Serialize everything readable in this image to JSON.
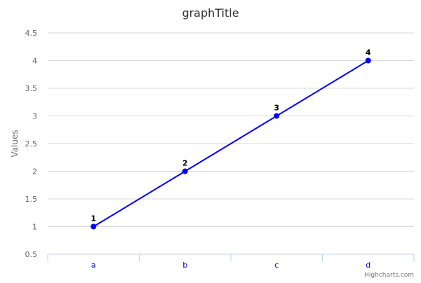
{
  "chart_data": {
    "type": "line",
    "title": "graphTitle",
    "xlabel": "",
    "ylabel": "Values",
    "categories": [
      "a",
      "b",
      "c",
      "d"
    ],
    "series": [
      {
        "values": [
          1,
          2,
          3,
          4
        ],
        "color": "#0000ff",
        "data_labels": [
          "1",
          "2",
          "3",
          "4"
        ]
      }
    ],
    "ylim": [
      0.5,
      4.5
    ],
    "yticks": [
      "0.5",
      "1",
      "1.5",
      "2",
      "2.5",
      "3",
      "3.5",
      "4",
      "4.5"
    ],
    "grid": true,
    "legend": "none"
  },
  "credits": "Highcharts.com",
  "colors": {
    "line": "#0000ff",
    "grid": "#d8d8d8",
    "x_tick_text": "#0000c8"
  }
}
